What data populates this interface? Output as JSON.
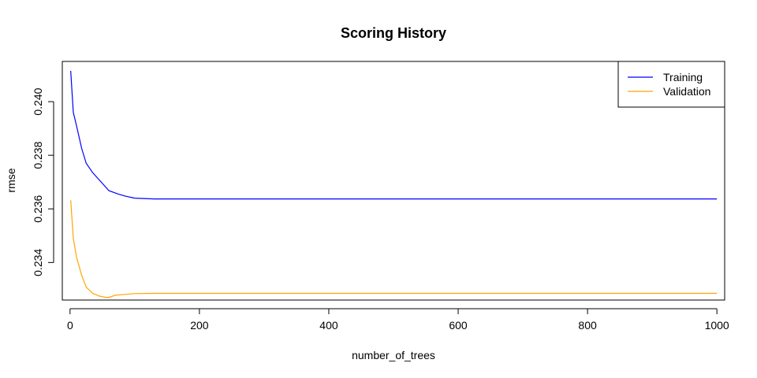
{
  "chart_data": {
    "type": "line",
    "title": "Scoring History",
    "xlabel": "number_of_trees",
    "ylabel": "rmse",
    "xlim": [
      -12,
      1012
    ],
    "ylim": [
      0.2326,
      0.2415
    ],
    "x_ticks": [
      0,
      200,
      400,
      600,
      800,
      1000
    ],
    "y_ticks": [
      0.234,
      0.236,
      0.238,
      0.24
    ],
    "x_tick_labels": [
      "0",
      "200",
      "400",
      "600",
      "800",
      "1000"
    ],
    "y_tick_labels": [
      "0.234",
      "0.236",
      "0.238",
      "0.240"
    ],
    "legend_position": "top-right",
    "grid": false,
    "series": [
      {
        "name": "Training",
        "color": "#0000ff",
        "x": [
          1,
          5,
          10,
          18,
          25,
          35,
          50,
          60,
          75,
          85,
          100,
          130,
          200,
          400,
          600,
          800,
          1000
        ],
        "y": [
          0.24115,
          0.2396,
          0.2391,
          0.23825,
          0.2377,
          0.23735,
          0.23695,
          0.23668,
          0.23655,
          0.23648,
          0.2364,
          0.23637,
          0.23637,
          0.23637,
          0.23637,
          0.23637,
          0.23637
        ]
      },
      {
        "name": "Validation",
        "color": "#ffa500",
        "x": [
          1,
          5,
          10,
          18,
          25,
          35,
          45,
          55,
          60,
          70,
          80,
          100,
          130,
          200,
          400,
          600,
          800,
          1000
        ],
        "y": [
          0.23632,
          0.2349,
          0.2342,
          0.23352,
          0.23308,
          0.23285,
          0.23275,
          0.2327,
          0.2327,
          0.23278,
          0.2328,
          0.23284,
          0.23285,
          0.23285,
          0.23285,
          0.23285,
          0.23285,
          0.23285
        ]
      }
    ]
  }
}
